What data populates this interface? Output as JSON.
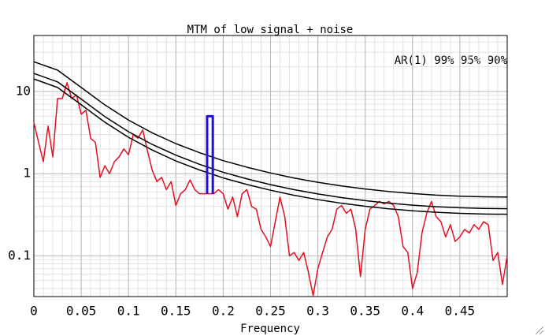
{
  "chart_data": {
    "type": "line",
    "title": "MTM of low signal + noise",
    "x_label": "Frequency",
    "annotation": "AR(1) 99% 95% 90%",
    "log_y": true,
    "grid": true,
    "minor_grid": true,
    "xlim": [
      0,
      0.5
    ],
    "ylim": [
      0.032,
      48
    ],
    "xticks": [
      0,
      0.05,
      0.1,
      0.15,
      0.2,
      0.25,
      0.3,
      0.35,
      0.4,
      0.45
    ],
    "yticks": [
      0.1,
      1,
      10
    ],
    "series": [
      {
        "color": "#e01020",
        "x": [
          0,
          0.005,
          0.01,
          0.015,
          0.02,
          0.025,
          0.03,
          0.035,
          0.04,
          0.045,
          0.05,
          0.055,
          0.06,
          0.065,
          0.07,
          0.075,
          0.08,
          0.085,
          0.09,
          0.095,
          0.1,
          0.105,
          0.11,
          0.115,
          0.12,
          0.125,
          0.13,
          0.135,
          0.14,
          0.145,
          0.15,
          0.155,
          0.16,
          0.165,
          0.17,
          0.175,
          0.18,
          0.185,
          0.19,
          0.195,
          0.2,
          0.205,
          0.21,
          0.215,
          0.22,
          0.225,
          0.23,
          0.235,
          0.24,
          0.245,
          0.25,
          0.255,
          0.26,
          0.265,
          0.27,
          0.275,
          0.28,
          0.285,
          0.29,
          0.295,
          0.3,
          0.305,
          0.31,
          0.315,
          0.32,
          0.325,
          0.33,
          0.335,
          0.34,
          0.345,
          0.35,
          0.355,
          0.36,
          0.365,
          0.37,
          0.375,
          0.38,
          0.385,
          0.39,
          0.395,
          0.4,
          0.405,
          0.41,
          0.415,
          0.42,
          0.425,
          0.43,
          0.435,
          0.44,
          0.445,
          0.45,
          0.455,
          0.46,
          0.465,
          0.47,
          0.475,
          0.48,
          0.485,
          0.49,
          0.495,
          0.5
        ],
        "values": [
          4.2,
          2.4,
          1.4,
          3.8,
          1.6,
          8.2,
          8.2,
          12.8,
          8.2,
          9.1,
          5.3,
          5.9,
          2.7,
          2.4,
          0.9,
          1.25,
          1.0,
          1.4,
          1.6,
          2.0,
          1.7,
          3.0,
          2.7,
          3.4,
          1.9,
          1.1,
          0.8,
          0.9,
          0.64,
          0.8,
          0.41,
          0.57,
          0.64,
          0.84,
          0.64,
          0.57,
          0.57,
          0.57,
          0.57,
          0.64,
          0.57,
          0.37,
          0.52,
          0.3,
          0.57,
          0.64,
          0.4,
          0.37,
          0.21,
          0.17,
          0.13,
          0.26,
          0.52,
          0.3,
          0.1,
          0.11,
          0.088,
          0.11,
          0.063,
          0.033,
          0.07,
          0.11,
          0.17,
          0.21,
          0.37,
          0.41,
          0.33,
          0.37,
          0.21,
          0.056,
          0.21,
          0.37,
          0.41,
          0.46,
          0.43,
          0.46,
          0.41,
          0.3,
          0.13,
          0.11,
          0.04,
          0.063,
          0.19,
          0.33,
          0.46,
          0.3,
          0.26,
          0.17,
          0.24,
          0.15,
          0.17,
          0.21,
          0.19,
          0.24,
          0.21,
          0.26,
          0.24,
          0.088,
          0.11,
          0.045,
          0.1
        ]
      },
      {
        "color": "#000000",
        "x": [
          0,
          0.025,
          0.05,
          0.075,
          0.1,
          0.125,
          0.15,
          0.175,
          0.2,
          0.225,
          0.25,
          0.275,
          0.3,
          0.325,
          0.35,
          0.375,
          0.4,
          0.425,
          0.45,
          0.475,
          0.5
        ],
        "values": [
          23.0,
          18.2,
          11.2,
          6.86,
          4.49,
          3.14,
          2.32,
          1.8,
          1.44,
          1.2,
          1.02,
          0.885,
          0.785,
          0.709,
          0.651,
          0.607,
          0.574,
          0.549,
          0.533,
          0.523,
          0.52
        ]
      },
      {
        "color": "#000000",
        "x": [
          0,
          0.025,
          0.05,
          0.075,
          0.1,
          0.125,
          0.15,
          0.175,
          0.2,
          0.225,
          0.25,
          0.275,
          0.3,
          0.325,
          0.35,
          0.375,
          0.4,
          0.425,
          0.45,
          0.475,
          0.5
        ],
        "values": [
          16.6,
          13.1,
          8.09,
          4.95,
          3.24,
          2.27,
          1.68,
          1.3,
          1.04,
          0.866,
          0.736,
          0.639,
          0.567,
          0.512,
          0.47,
          0.438,
          0.414,
          0.396,
          0.385,
          0.378,
          0.375
        ]
      },
      {
        "color": "#000000",
        "x": [
          0,
          0.025,
          0.05,
          0.075,
          0.1,
          0.125,
          0.15,
          0.175,
          0.2,
          0.225,
          0.25,
          0.275,
          0.3,
          0.325,
          0.35,
          0.375,
          0.4,
          0.425,
          0.45,
          0.475,
          0.5
        ],
        "values": [
          14.2,
          11.2,
          6.91,
          4.23,
          2.77,
          1.94,
          1.43,
          1.11,
          0.888,
          0.74,
          0.629,
          0.546,
          0.484,
          0.437,
          0.402,
          0.374,
          0.354,
          0.339,
          0.329,
          0.323,
          0.321
        ]
      },
      {
        "color": "#2010e0",
        "x": [
          0.183,
          0.183,
          0.189,
          0.189
        ],
        "values": [
          0.57,
          5,
          5,
          0.57
        ]
      }
    ]
  }
}
